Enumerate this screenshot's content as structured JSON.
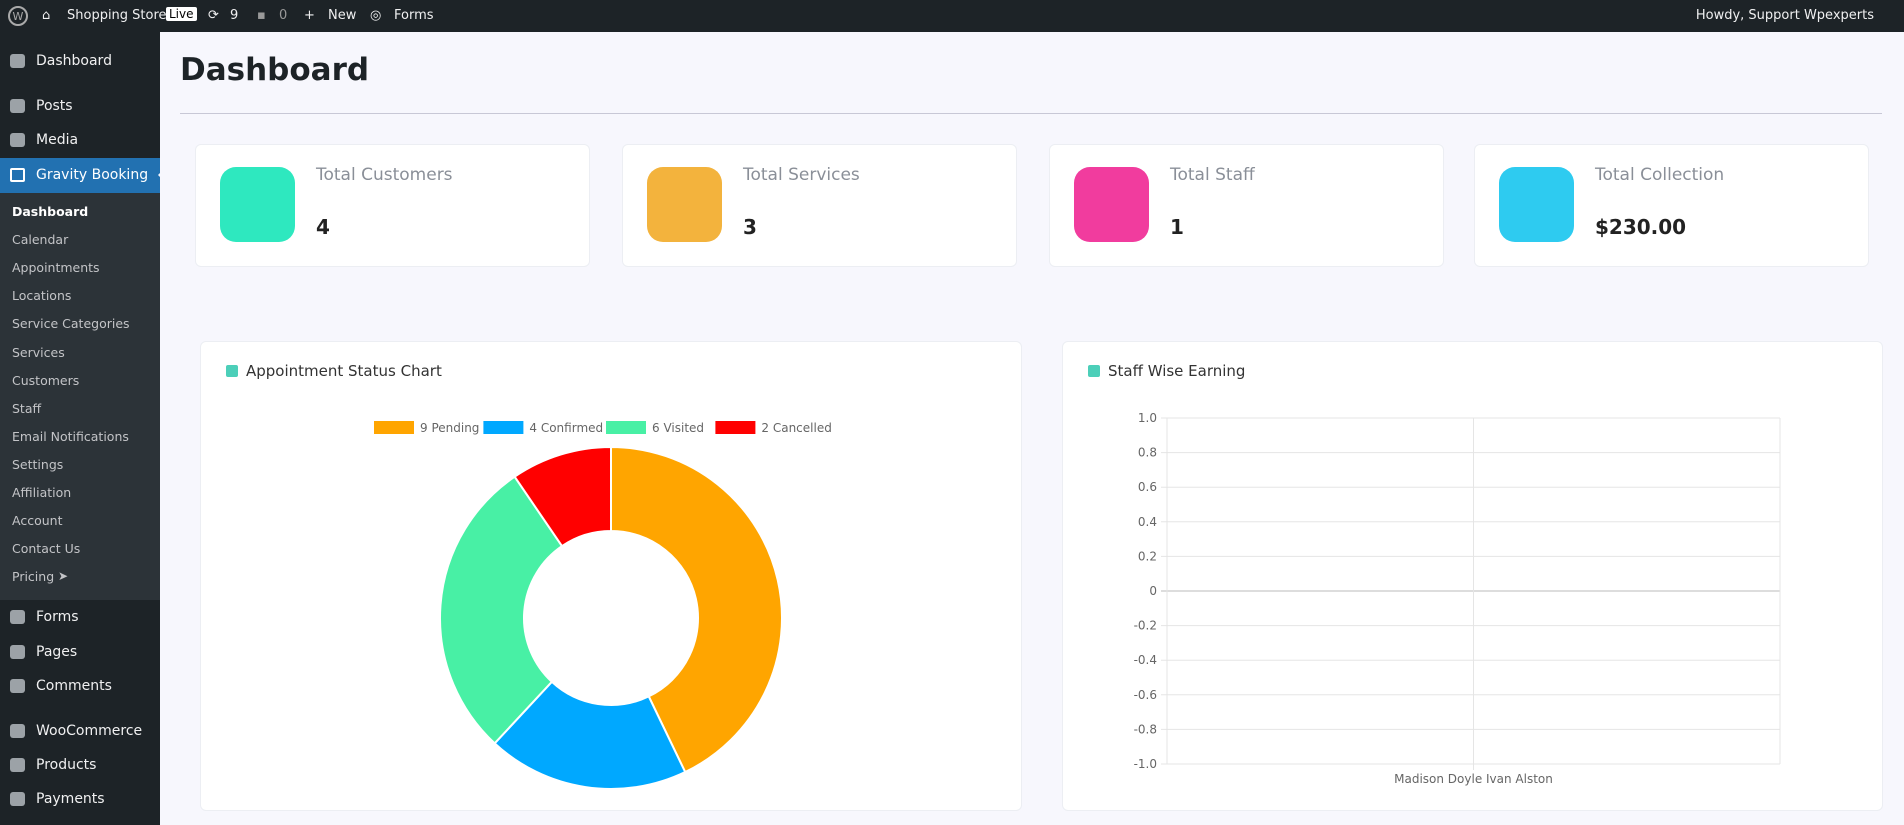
{
  "admin_bar": {
    "site": "Shopping Store",
    "live": "Live",
    "updates": "9",
    "comments": "0",
    "new": "New",
    "forms": "Forms",
    "howdy": "Howdy, Support Wpexperts"
  },
  "sidebar": {
    "top": [
      "Dashboard",
      "Posts",
      "Media"
    ],
    "active": "Gravity Booking",
    "submenu": [
      "Dashboard",
      "Calendar",
      "Appointments",
      "Locations",
      "Service Categories",
      "Services",
      "Customers",
      "Staff",
      "Email Notifications",
      "Settings",
      "Affiliation",
      "Account",
      "Contact Us",
      "Pricing"
    ],
    "bottom": [
      "Forms",
      "Pages",
      "Comments",
      "WooCommerce",
      "Products",
      "Payments"
    ]
  },
  "header": {
    "title": "Dashboard"
  },
  "stats": [
    {
      "label": "Total Customers",
      "value": "4",
      "color": "#2ee8bf"
    },
    {
      "label": "Total Services",
      "value": "3",
      "color": "#f3b33d"
    },
    {
      "label": "Total Staff",
      "value": "1",
      "color": "#f13c9e"
    },
    {
      "label": "Total Collection",
      "value": "$230.00",
      "color": "#2ecbf0"
    }
  ],
  "chart_data": [
    {
      "type": "doughnut",
      "title": "Appointment Status Chart",
      "categories": [
        "9 Pending",
        "4 Confirmed",
        "6 Visited",
        "2 Cancelled"
      ],
      "values": [
        9,
        4,
        6,
        2
      ],
      "colors": [
        "#ffa500",
        "#00a8ff",
        "#48f0a5",
        "#ff0000"
      ]
    },
    {
      "type": "bar",
      "title": "Staff Wise Earning",
      "categories": [
        "Madison Doyle Ivan Alston"
      ],
      "values": [
        0
      ],
      "color": "#36a2eb",
      "ylim": [
        -1,
        1
      ],
      "yticks": [
        {
          "value": -1,
          "label": "-1.0"
        },
        -0.8,
        -0.6,
        -0.4,
        -0.2,
        0,
        0.2,
        0.4,
        0.6,
        0.8,
        {
          "value": 1,
          "label": "1.0"
        }
      ],
      "grid": true
    }
  ]
}
